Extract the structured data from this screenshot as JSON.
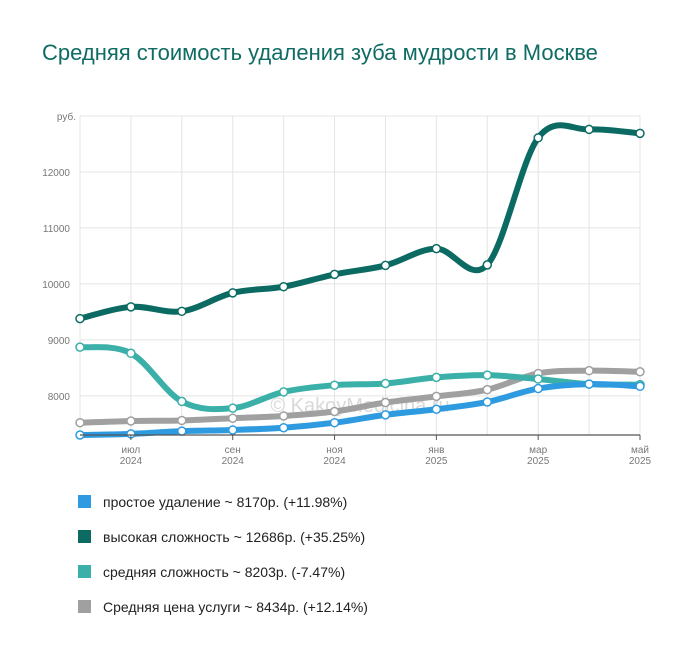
{
  "chart_data": {
    "type": "line",
    "title": "Средняя стоимость удаления зуба мудрости в Москве",
    "y_unit_label": "руб.",
    "watermark": "© KakoyMedicina.ru",
    "ylim": [
      7300,
      13000
    ],
    "y_ticks": [
      {
        "value": 8000,
        "label": "8000"
      },
      {
        "value": 9000,
        "label": "9000"
      },
      {
        "value": 10000,
        "label": "10000"
      },
      {
        "value": 11000,
        "label": "11000"
      },
      {
        "value": 12000,
        "label": "12000"
      }
    ],
    "x_count": 12,
    "x_ticks": [
      {
        "index": 1,
        "month": "июл",
        "year": "2024"
      },
      {
        "index": 3,
        "month": "сен",
        "year": "2024"
      },
      {
        "index": 5,
        "month": "ноя",
        "year": "2024"
      },
      {
        "index": 7,
        "month": "янв",
        "year": "2025"
      },
      {
        "index": 9,
        "month": "мар",
        "year": "2025"
      },
      {
        "index": 11,
        "month": "май",
        "year": "2025"
      }
    ],
    "grid": true,
    "legend_position": "bottom",
    "series": [
      {
        "name": "Средняя цена услуги",
        "legend": "Средняя цена услуги ~ 8434р. (+12.14%)",
        "color": "#a0a0a0",
        "values": [
          7520,
          7550,
          7560,
          7600,
          7640,
          7720,
          7880,
          7990,
          8110,
          8400,
          8450,
          8430
        ]
      },
      {
        "name": "средняя сложность",
        "legend": "средняя сложность ~ 8203р. (-7.47%)",
        "color": "#3bb0a8",
        "values": [
          8870,
          8760,
          7900,
          7780,
          8070,
          8190,
          8220,
          8330,
          8370,
          8300,
          8210,
          8200
        ]
      },
      {
        "name": "простое удаление",
        "legend": "простое удаление ~ 8170р. (+11.98%)",
        "color": "#2e9be0",
        "values": [
          7300,
          7320,
          7370,
          7390,
          7430,
          7520,
          7660,
          7760,
          7890,
          8130,
          8210,
          8170
        ]
      },
      {
        "name": "высокая сложность",
        "legend": "высокая сложность ~ 12686р. (+35.25%)",
        "color": "#0b6b63",
        "values": [
          9380,
          9590,
          9510,
          9840,
          9950,
          10170,
          10330,
          10630,
          10340,
          12610,
          12760,
          12690
        ]
      }
    ],
    "legend_order": [
      2,
      3,
      1,
      0
    ]
  }
}
